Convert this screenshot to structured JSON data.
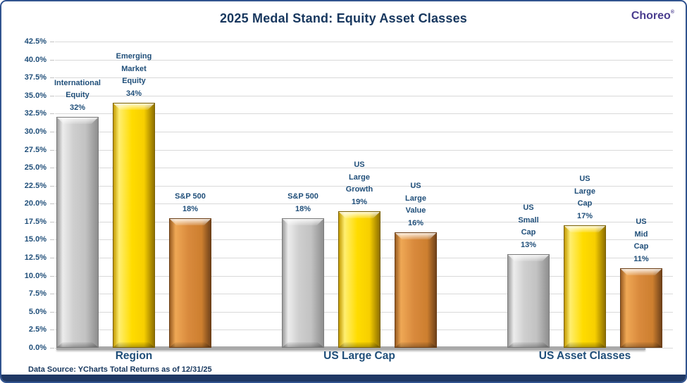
{
  "header": {
    "title": "2025 Medal Stand: Equity Asset Classes",
    "logo": "Choreo"
  },
  "footnote": "Data Source: YCharts Total Returns as of 12/31/25",
  "colors": {
    "title_navy": "#17375E",
    "label_blue": "#1F4E79",
    "gold": "#FFDC00",
    "silver": "#C9C9C9",
    "bronze": "#D98A3D",
    "gridline": "#D9D9D9",
    "frame_border": "#31538F",
    "footer_band": "#1F3864",
    "logo_purple": "#4A3D8F"
  },
  "chart_data": {
    "type": "bar",
    "title": "2025 Medal Stand: Equity Asset Classes",
    "xlabel": "",
    "ylabel": "",
    "grid": true,
    "legend": "none",
    "y_axis": {
      "min": 0,
      "max": 42.5,
      "step": 2.5,
      "tick_suffix": "%",
      "tick_decimals": 1
    },
    "groups": [
      {
        "label": "Region",
        "bars": [
          {
            "name": "International Equity",
            "label_lines": [
              "International",
              "Equity"
            ],
            "value": 32,
            "value_label": "32%",
            "medal": "silver"
          },
          {
            "name": "Emerging Market Equity",
            "label_lines": [
              "Emerging",
              "Market",
              "Equity"
            ],
            "value": 34,
            "value_label": "34%",
            "medal": "gold"
          },
          {
            "name": "S&P 500",
            "label_lines": [
              "S&P 500"
            ],
            "value": 18,
            "value_label": "18%",
            "medal": "bronze"
          }
        ]
      },
      {
        "label": "US Large Cap",
        "bars": [
          {
            "name": "S&P 500",
            "label_lines": [
              "S&P 500"
            ],
            "value": 18,
            "value_label": "18%",
            "medal": "silver"
          },
          {
            "name": "US Large Growth",
            "label_lines": [
              "US",
              "Large",
              "Growth"
            ],
            "value": 19,
            "value_label": "19%",
            "medal": "gold"
          },
          {
            "name": "US Large Value",
            "label_lines": [
              "US",
              "Large",
              "Value"
            ],
            "value": 16,
            "value_label": "16%",
            "medal": "bronze"
          }
        ]
      },
      {
        "label": "US Asset Classes",
        "bars": [
          {
            "name": "US Small Cap",
            "label_lines": [
              "US",
              "Small",
              "Cap"
            ],
            "value": 13,
            "value_label": "13%",
            "medal": "silver"
          },
          {
            "name": "US Large Cap",
            "label_lines": [
              "US",
              "Large",
              "Cap"
            ],
            "value": 17,
            "value_label": "17%",
            "medal": "gold"
          },
          {
            "name": "US Mid Cap",
            "label_lines": [
              "US",
              "Mid",
              "Cap"
            ],
            "value": 11,
            "value_label": "11%",
            "medal": "bronze"
          }
        ]
      }
    ]
  }
}
